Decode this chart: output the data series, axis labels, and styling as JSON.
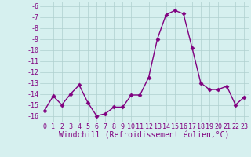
{
  "x": [
    0,
    1,
    2,
    3,
    4,
    5,
    6,
    7,
    8,
    9,
    10,
    11,
    12,
    13,
    14,
    15,
    16,
    17,
    18,
    19,
    20,
    21,
    22,
    23
  ],
  "y": [
    -15.5,
    -14.2,
    -15.0,
    -14.0,
    -13.2,
    -14.8,
    -16.0,
    -15.8,
    -15.2,
    -15.2,
    -14.1,
    -14.1,
    -12.5,
    -9.0,
    -6.8,
    -6.4,
    -6.7,
    -9.8,
    -13.0,
    -13.6,
    -13.6,
    -13.3,
    -15.0,
    -14.3
  ],
  "line_color": "#800080",
  "marker": "D",
  "marker_size": 2.5,
  "bg_color": "#d6f0ef",
  "grid_color": "#afd0cf",
  "xlabel": "Windchill (Refroidissement éolien,°C)",
  "xlabel_fontsize": 7,
  "yticks": [
    -16,
    -15,
    -14,
    -13,
    -12,
    -11,
    -10,
    -9,
    -8,
    -7,
    -6
  ],
  "xticks": [
    0,
    1,
    2,
    3,
    4,
    5,
    6,
    7,
    8,
    9,
    10,
    11,
    12,
    13,
    14,
    15,
    16,
    17,
    18,
    19,
    20,
    21,
    22,
    23
  ],
  "ylim": [
    -16.6,
    -5.6
  ],
  "xlim": [
    -0.5,
    23.5
  ],
  "tick_color": "#800080",
  "tick_fontsize": 6,
  "line_width": 1.0
}
